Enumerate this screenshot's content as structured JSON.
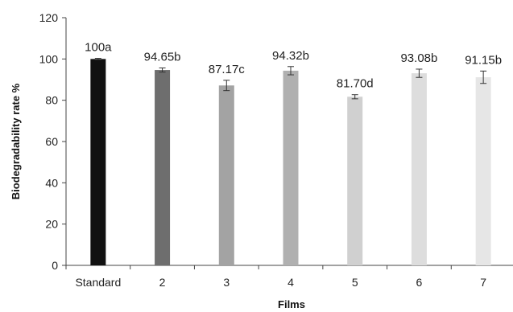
{
  "chart_data": {
    "type": "bar",
    "xlabel": "Films",
    "ylabel": "Biodegradability rate %",
    "ylim": [
      0,
      120
    ],
    "yticks": [
      0,
      20,
      40,
      60,
      80,
      100,
      120
    ],
    "grid": false,
    "categories": [
      "Standard",
      "2",
      "3",
      "4",
      "5",
      "6",
      "7"
    ],
    "values": [
      100,
      94.65,
      87.17,
      94.32,
      81.7,
      93.08,
      91.15
    ],
    "errors": [
      0.3,
      1.0,
      2.5,
      2.0,
      1.0,
      2.0,
      3.0
    ],
    "data_labels": [
      "100a",
      "94.65b",
      "87.17c",
      "94.32b",
      "81.70d",
      "93.08b",
      "91.15b"
    ],
    "bar_colors": [
      "#111111",
      "#6e6e6e",
      "#a3a3a3",
      "#b0b0b0",
      "#d0d0d0",
      "#dddddd",
      "#e6e6e6"
    ]
  }
}
